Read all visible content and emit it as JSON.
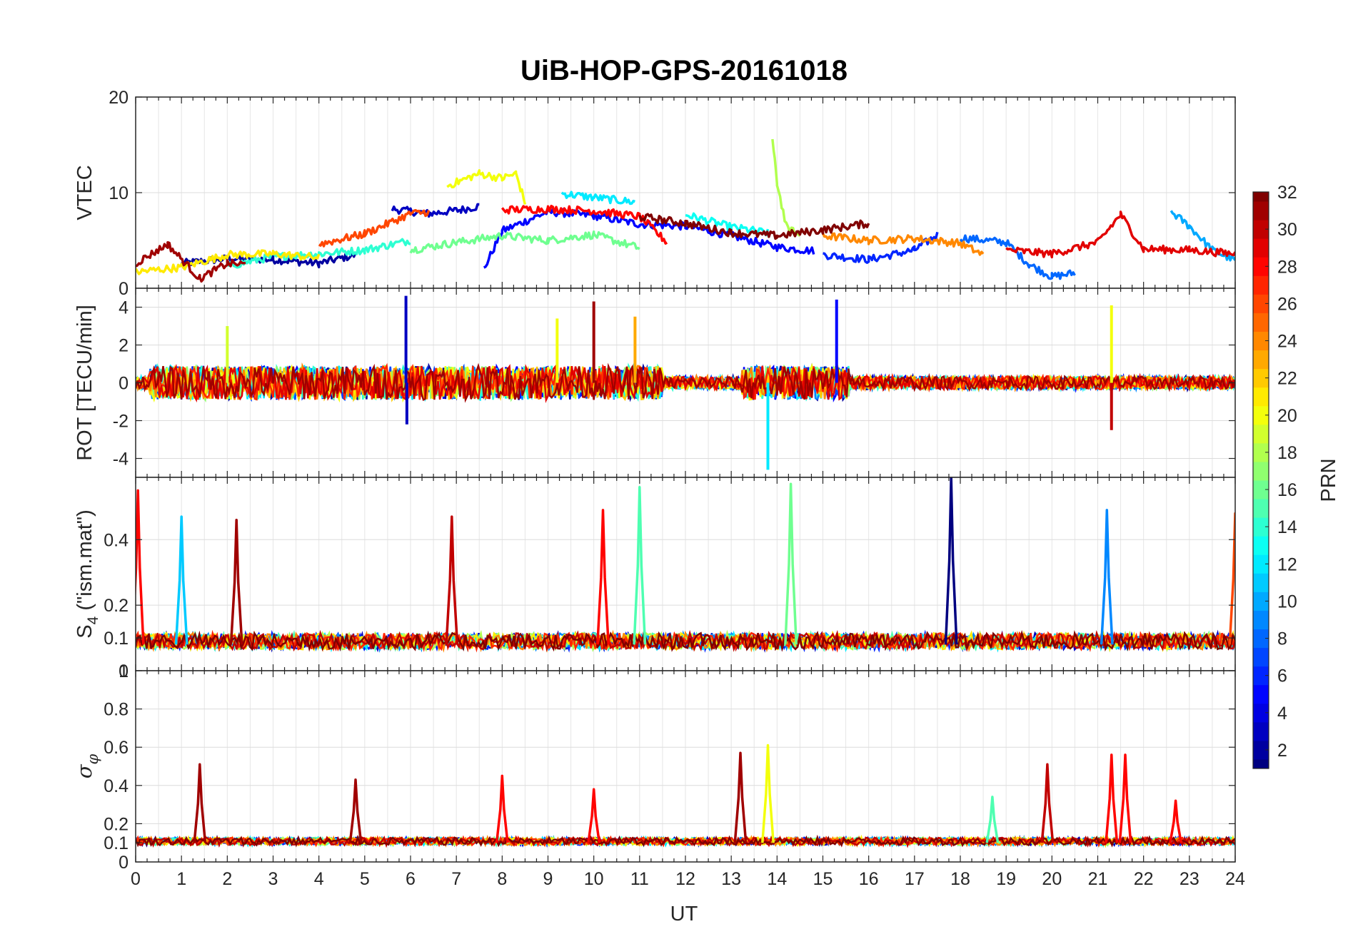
{
  "chart_data": {
    "type": "line",
    "title": "UiB-HOP-GPS-20161018",
    "xlabel": "UT",
    "xlim": [
      0,
      24
    ],
    "x_ticks": [
      "0",
      "1",
      "2",
      "3",
      "4",
      "5",
      "6",
      "7",
      "8",
      "9",
      "10",
      "11",
      "12",
      "13",
      "14",
      "15",
      "16",
      "17",
      "18",
      "19",
      "20",
      "21",
      "22",
      "23",
      "24"
    ],
    "grid": true,
    "colorbar": {
      "label": "PRN",
      "range": [
        1,
        32
      ],
      "ticks": [
        "2",
        "4",
        "6",
        "8",
        "10",
        "12",
        "14",
        "16",
        "18",
        "20",
        "22",
        "24",
        "26",
        "28",
        "30",
        "32"
      ],
      "colormap": "jet"
    },
    "panels": [
      {
        "ylabel": "VTEC",
        "ylim": [
          0,
          20
        ],
        "y_ticks": [
          "0",
          "10",
          "20"
        ],
        "series": [
          {
            "prn": 2,
            "x": [
              1.0,
              2.0,
              3.0,
              4.0,
              4.8
            ],
            "y": [
              2.6,
              3.1,
              3.0,
              2.6,
              3.5
            ]
          },
          {
            "prn": 3,
            "x": [
              5.6,
              6.4,
              7.1,
              7.5
            ],
            "y": [
              8.3,
              7.8,
              8.2,
              8.6
            ]
          },
          {
            "prn": 5,
            "x": [
              7.6,
              8.0,
              9.0,
              10.0,
              11.0,
              12.0,
              13.0,
              14.0,
              14.8
            ],
            "y": [
              2.0,
              6.0,
              8.0,
              7.6,
              6.7,
              6.5,
              5.5,
              4.3,
              3.9
            ]
          },
          {
            "prn": 6,
            "x": [
              15.0,
              16.0,
              17.0,
              17.5
            ],
            "y": [
              3.5,
              3.0,
              4.0,
              5.6
            ]
          },
          {
            "prn": 8,
            "x": [
              18.0,
              19.0,
              19.5,
              20.0,
              20.5
            ],
            "y": [
              5.3,
              4.8,
              2.5,
              1.2,
              1.6
            ]
          },
          {
            "prn": 12,
            "x": [
              9.3,
              10.0,
              10.9
            ],
            "y": [
              9.9,
              9.5,
              9.0
            ]
          },
          {
            "prn": 13,
            "x": [
              12.0,
              13.0,
              13.8
            ],
            "y": [
              7.7,
              6.4,
              5.8
            ]
          },
          {
            "prn": 10,
            "x": [
              22.6,
              23.0,
              23.5,
              24.0
            ],
            "y": [
              8.0,
              6.5,
              4.0,
              2.9
            ]
          },
          {
            "prn": 14,
            "x": [
              2.0,
              3.0,
              4.0,
              5.0,
              6.0
            ],
            "y": [
              2.3,
              3.3,
              3.6,
              4.0,
              5.0
            ]
          },
          {
            "prn": 16,
            "x": [
              6.0,
              7.0,
              8.0,
              9.0,
              10.0,
              11.0
            ],
            "y": [
              4.0,
              4.8,
              5.5,
              5.0,
              5.6,
              4.2
            ]
          },
          {
            "prn": 18,
            "x": [
              13.9,
              14.0,
              14.2,
              14.5
            ],
            "y": [
              15.5,
              11.0,
              6.5,
              5.4
            ]
          },
          {
            "prn": 20,
            "x": [
              6.8,
              7.5,
              8.0,
              8.3,
              8.5
            ],
            "y": [
              10.7,
              12.0,
              11.5,
              12.0,
              9.0
            ]
          },
          {
            "prn": 21,
            "x": [
              0.0,
              1.0,
              2.0,
              3.0,
              4.0
            ],
            "y": [
              1.7,
              2.2,
              3.5,
              3.6,
              3.2
            ]
          },
          {
            "prn": 24,
            "x": [
              15.0,
              16.0,
              17.0,
              18.0,
              18.5
            ],
            "y": [
              5.5,
              5.0,
              5.2,
              4.7,
              3.5
            ]
          },
          {
            "prn": 28,
            "x": [
              8.0,
              9.0,
              10.0,
              11.0,
              11.6
            ],
            "y": [
              8.2,
              8.3,
              8.1,
              7.5,
              4.8
            ]
          },
          {
            "prn": 26,
            "x": [
              4.0,
              5.0,
              6.0,
              6.4
            ],
            "y": [
              4.6,
              5.7,
              7.8,
              8.0
            ]
          },
          {
            "prn": 29,
            "x": [
              19.0,
              20.0,
              21.0,
              21.5,
              22.0,
              23.0,
              24.0
            ],
            "y": [
              4.0,
              3.6,
              4.8,
              7.7,
              4.1,
              4.0,
              3.6
            ]
          },
          {
            "prn": 31,
            "x": [
              0.0,
              0.7,
              1.4,
              2.0,
              2.4
            ],
            "y": [
              2.6,
              4.6,
              1.0,
              2.6,
              2.5
            ]
          },
          {
            "prn": 32,
            "x": [
              11.0,
              12.0,
              13.0,
              14.0,
              15.0,
              16.0
            ],
            "y": [
              7.5,
              6.8,
              5.8,
              5.5,
              6.1,
              6.8
            ]
          }
        ]
      },
      {
        "ylabel": "ROT [TECU/min]",
        "ylim": [
          -5,
          5
        ],
        "y_ticks": [
          "-4",
          "-2",
          "0",
          "2",
          "4"
        ],
        "spikes": [
          {
            "prn": 3,
            "x": 5.9,
            "y": 4.6
          },
          {
            "prn": 3,
            "x": 5.92,
            "y": -2.2
          },
          {
            "prn": 31,
            "x": 10.0,
            "y": 4.3
          },
          {
            "prn": 5,
            "x": 15.3,
            "y": 4.4
          },
          {
            "prn": 20,
            "x": 21.3,
            "y": 4.1
          },
          {
            "prn": 30,
            "x": 21.3,
            "y": -2.5
          },
          {
            "prn": 12,
            "x": 13.8,
            "y": -4.6
          },
          {
            "prn": 19,
            "x": 2.0,
            "y": 3.0
          },
          {
            "prn": 20,
            "x": 9.2,
            "y": 3.4
          },
          {
            "prn": 23,
            "x": 10.9,
            "y": 3.5
          }
        ]
      },
      {
        "ylabel": "S4 (\"ism.mat\")",
        "ylabel_main": "S",
        "ylabel_sub": "4",
        "ylabel_rest": " (\"ism.mat\")",
        "ylim": [
          0.0,
          0.59
        ],
        "y_ticks": [
          "0",
          "0.1",
          "0.2",
          "0.4"
        ],
        "baseline": 0.08,
        "peaks": [
          {
            "prn": 28,
            "x": 0.05,
            "y": 0.55
          },
          {
            "prn": 31,
            "x": 2.2,
            "y": 0.46
          },
          {
            "prn": 11,
            "x": 1.0,
            "y": 0.47
          },
          {
            "prn": 30,
            "x": 6.9,
            "y": 0.47
          },
          {
            "prn": 28,
            "x": 10.2,
            "y": 0.49
          },
          {
            "prn": 15,
            "x": 11.0,
            "y": 0.56
          },
          {
            "prn": 16,
            "x": 14.3,
            "y": 0.57
          },
          {
            "prn": 1,
            "x": 17.8,
            "y": 0.59
          },
          {
            "prn": 9,
            "x": 21.2,
            "y": 0.49
          },
          {
            "prn": 26,
            "x": 24.0,
            "y": 0.48
          }
        ]
      },
      {
        "ylabel": "σφ",
        "ylim": [
          0,
          1
        ],
        "y_ticks": [
          "0",
          "0.1",
          "0.2",
          "0.4",
          "0.6",
          "0.8",
          "1"
        ],
        "baseline": 0.1,
        "peaks": [
          {
            "prn": 31,
            "x": 1.4,
            "y": 0.51
          },
          {
            "prn": 31,
            "x": 4.8,
            "y": 0.43
          },
          {
            "prn": 28,
            "x": 8.0,
            "y": 0.45
          },
          {
            "prn": 28,
            "x": 10.0,
            "y": 0.38
          },
          {
            "prn": 31,
            "x": 13.2,
            "y": 0.57
          },
          {
            "prn": 20,
            "x": 13.8,
            "y": 0.61
          },
          {
            "prn": 15,
            "x": 18.7,
            "y": 0.34
          },
          {
            "prn": 30,
            "x": 19.9,
            "y": 0.51
          },
          {
            "prn": 28,
            "x": 21.3,
            "y": 0.56
          },
          {
            "prn": 28,
            "x": 21.6,
            "y": 0.56
          },
          {
            "prn": 28,
            "x": 22.7,
            "y": 0.32
          }
        ]
      }
    ]
  }
}
